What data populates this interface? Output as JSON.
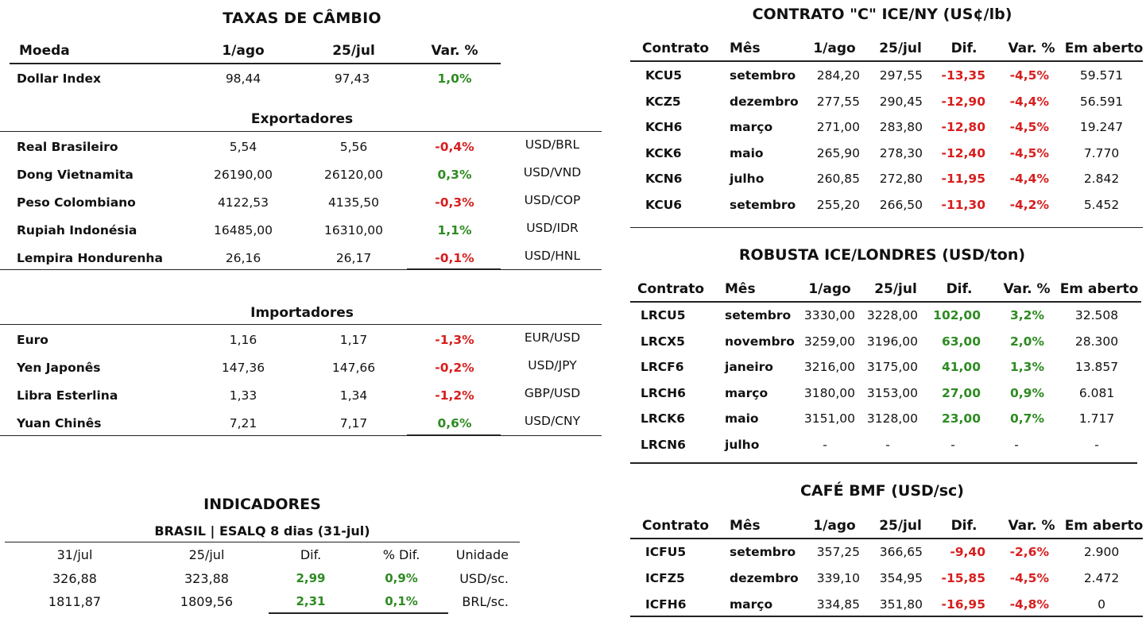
{
  "fx": {
    "title": "TAXAS DE CÂMBIO",
    "headers": [
      "Moeda",
      "1/ago",
      "25/jul",
      "Var. %"
    ],
    "dollar_index": {
      "name": "Dollar Index",
      "v1": "98,44",
      "v2": "97,43",
      "var": "1,0%"
    },
    "exporters_title": "Exportadores",
    "exporters": [
      {
        "name": "Real Brasileiro",
        "v1": "5,54",
        "v2": "5,56",
        "var": "-0,4%",
        "pair": "USD/BRL"
      },
      {
        "name": "Dong Vietnamita",
        "v1": "26190,00",
        "v2": "26120,00",
        "var": "0,3%",
        "pair": "USD/VND"
      },
      {
        "name": "Peso Colombiano",
        "v1": "4122,53",
        "v2": "4135,50",
        "var": "-0,3%",
        "pair": "USD/COP"
      },
      {
        "name": "Rupiah Indonésia",
        "v1": "16485,00",
        "v2": "16310,00",
        "var": "1,1%",
        "pair": "USD/IDR"
      },
      {
        "name": "Lempira Hondurenha",
        "v1": "26,16",
        "v2": "26,17",
        "var": "-0,1%",
        "pair": "USD/HNL"
      }
    ],
    "importers_title": "Importadores",
    "importers": [
      {
        "name": "Euro",
        "v1": "1,16",
        "v2": "1,17",
        "var": "-1,3%",
        "pair": "EUR/USD"
      },
      {
        "name": "Yen Japonês",
        "v1": "147,36",
        "v2": "147,66",
        "var": "-0,2%",
        "pair": "USD/JPY"
      },
      {
        "name": "Libra Esterlina",
        "v1": "1,33",
        "v2": "1,34",
        "var": "-1,2%",
        "pair": "GBP/USD"
      },
      {
        "name": "Yuan Chinês",
        "v1": "7,21",
        "v2": "7,17",
        "var": "0,6%",
        "pair": "USD/CNY"
      }
    ]
  },
  "indicators": {
    "title": "INDICADORES",
    "subtitle": "BRASIL | ESALQ 8 dias (31-jul)",
    "headers": [
      "31/jul",
      "25/jul",
      "Dif.",
      "% Dif.",
      "Unidade"
    ],
    "rows": [
      {
        "v1": "326,88",
        "v2": "323,88",
        "dif": "2,99",
        "pct": "0,9%",
        "unit": "USD/sc."
      },
      {
        "v1": "1811,87",
        "v2": "1809,56",
        "dif": "2,31",
        "pct": "0,1%",
        "unit": "BRL/sc."
      }
    ]
  },
  "ice_ny": {
    "title": "CONTRATO \"C\" ICE/NY (US¢/lb)",
    "headers": [
      "Contrato",
      "Mês",
      "1/ago",
      "25/jul",
      "Dif.",
      "Var. %",
      "Em aberto"
    ],
    "rows": [
      {
        "c": "KCU5",
        "m": "setembro",
        "v1": "284,20",
        "v2": "297,55",
        "dif": "-13,35",
        "var": "-4,5%",
        "oi": "59.571"
      },
      {
        "c": "KCZ5",
        "m": "dezembro",
        "v1": "277,55",
        "v2": "290,45",
        "dif": "-12,90",
        "var": "-4,4%",
        "oi": "56.591"
      },
      {
        "c": "KCH6",
        "m": "março",
        "v1": "271,00",
        "v2": "283,80",
        "dif": "-12,80",
        "var": "-4,5%",
        "oi": "19.247"
      },
      {
        "c": "KCK6",
        "m": "maio",
        "v1": "265,90",
        "v2": "278,30",
        "dif": "-12,40",
        "var": "-4,5%",
        "oi": "7.770"
      },
      {
        "c": "KCN6",
        "m": "julho",
        "v1": "260,85",
        "v2": "272,80",
        "dif": "-11,95",
        "var": "-4,4%",
        "oi": "2.842"
      },
      {
        "c": "KCU6",
        "m": "setembro",
        "v1": "255,20",
        "v2": "266,50",
        "dif": "-11,30",
        "var": "-4,2%",
        "oi": "5.452"
      }
    ]
  },
  "robusta": {
    "title": "ROBUSTA ICE/LONDRES (USD/ton)",
    "headers": [
      "Contrato",
      "Mês",
      "1/ago",
      "25/jul",
      "Dif.",
      "Var. %",
      "Em aberto"
    ],
    "rows": [
      {
        "c": "LRCU5",
        "m": "setembro",
        "v1": "3330,00",
        "v2": "3228,00",
        "dif": "102,00",
        "var": "3,2%",
        "oi": "32.508"
      },
      {
        "c": "LRCX5",
        "m": "novembro",
        "v1": "3259,00",
        "v2": "3196,00",
        "dif": "63,00",
        "var": "2,0%",
        "oi": "28.300"
      },
      {
        "c": "LRCF6",
        "m": "janeiro",
        "v1": "3216,00",
        "v2": "3175,00",
        "dif": "41,00",
        "var": "1,3%",
        "oi": "13.857"
      },
      {
        "c": "LRCH6",
        "m": "março",
        "v1": "3180,00",
        "v2": "3153,00",
        "dif": "27,00",
        "var": "0,9%",
        "oi": "6.081"
      },
      {
        "c": "LRCK6",
        "m": "maio",
        "v1": "3151,00",
        "v2": "3128,00",
        "dif": "23,00",
        "var": "0,7%",
        "oi": "1.717"
      },
      {
        "c": "LRCN6",
        "m": "julho",
        "v1": "-",
        "v2": "-",
        "dif": "-",
        "var": "-",
        "oi": "-"
      }
    ]
  },
  "bmf": {
    "title": "CAFÉ BMF (USD/sc)",
    "headers": [
      "Contrato",
      "Mês",
      "1/ago",
      "25/jul",
      "Dif.",
      "Var. %",
      "Em aberto"
    ],
    "rows": [
      {
        "c": "ICFU5",
        "m": "setembro",
        "v1": "357,25",
        "v2": "366,65",
        "dif": "-9,40",
        "var": "-2,6%",
        "oi": "2.900"
      },
      {
        "c": "ICFZ5",
        "m": "dezembro",
        "v1": "339,10",
        "v2": "354,95",
        "dif": "-15,85",
        "var": "-4,5%",
        "oi": "2.472"
      },
      {
        "c": "ICFH6",
        "m": "março",
        "v1": "334,85",
        "v2": "351,80",
        "dif": "-16,95",
        "var": "-4,8%",
        "oi": "0"
      }
    ]
  }
}
